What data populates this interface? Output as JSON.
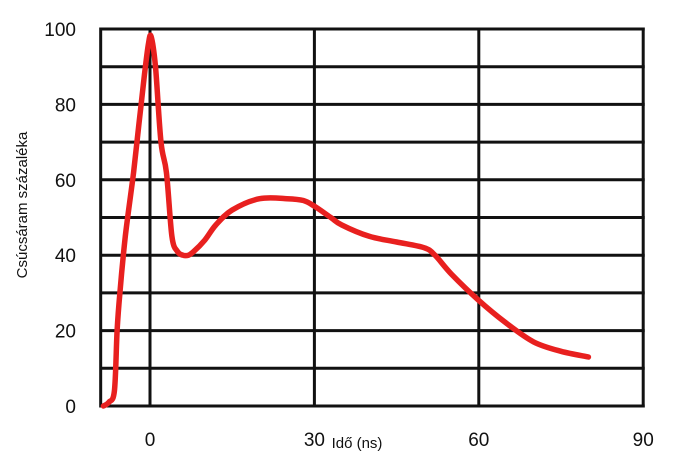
{
  "chart_data": {
    "type": "line",
    "title": "",
    "xlabel": "Idő (ns)",
    "ylabel": "Csúcsáram százaléka",
    "xlim": [
      -10,
      90
    ],
    "ylim": [
      0,
      100
    ],
    "x_ticks": [
      0,
      30,
      60,
      90
    ],
    "y_ticks": [
      0,
      20,
      40,
      60,
      80,
      100
    ],
    "x_tick_labels": [
      "0",
      "30",
      "60",
      "90"
    ],
    "y_tick_labels": [
      "0",
      "20",
      "40",
      "60",
      "80",
      "100"
    ],
    "vertical_gridlines": [
      -9,
      0,
      30,
      60,
      90
    ],
    "horizontal_gridlines": [
      0,
      10,
      20,
      30,
      40,
      50,
      60,
      70,
      80,
      90,
      100
    ],
    "grid": true,
    "series": [
      {
        "color": "#e8201f",
        "x": [
          -8.5,
          -7.5,
          -6.5,
          -6.0,
          -5.5,
          -4.5,
          -3.0,
          -2.0,
          -1.0,
          -0.3,
          0.2,
          1.0,
          2.0,
          3.0,
          4.0,
          5.0,
          6.0,
          7.0,
          8.0,
          10.0,
          12.0,
          15.0,
          20.0,
          25.0,
          28.0,
          30.0,
          33.0,
          35.0,
          40.0,
          45.0,
          50.0,
          52.0,
          55.0,
          60.0,
          65.0,
          70.0,
          75.0,
          80.0
        ],
        "y": [
          0,
          1,
          4,
          20,
          30,
          45,
          62,
          75,
          88,
          96,
          98,
          90,
          70,
          62,
          45,
          41,
          40,
          40,
          41,
          44,
          48,
          52,
          55,
          55,
          54.5,
          53,
          50,
          48,
          45,
          43.5,
          42,
          40,
          35,
          28,
          22,
          17,
          14.5,
          13
        ]
      }
    ]
  }
}
